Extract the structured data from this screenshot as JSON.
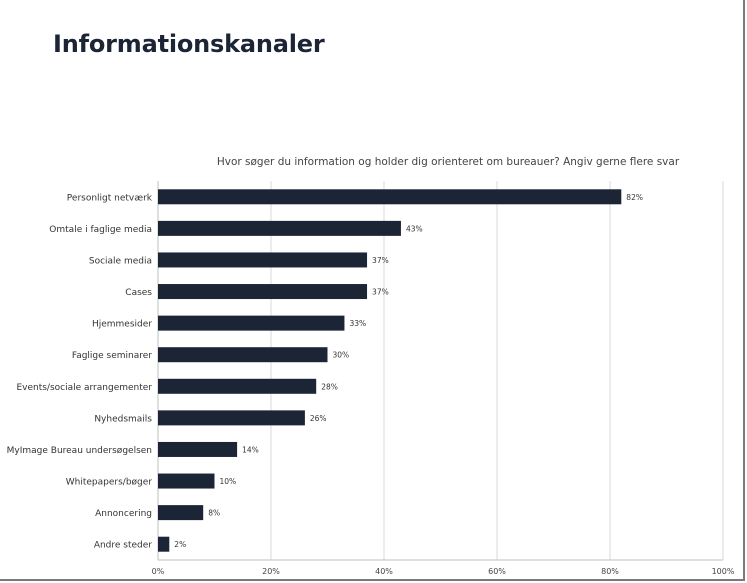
{
  "page": {
    "title": "Informationskanaler"
  },
  "chart_data": {
    "type": "bar",
    "orientation": "horizontal",
    "title": "Hvor søger du information og holder dig orienteret om bureauer? Angiv gerne flere svar",
    "categories": [
      "Personligt netværk",
      "Omtale i faglige media",
      "Sociale media",
      "Cases",
      "Hjemmesider",
      "Faglige seminarer",
      "Events/sociale arrangementer",
      "Nyhedsmails",
      "MyImage Bureau undersøgelsen",
      "Whitepapers/bøger",
      "Annoncering",
      "Andre steder"
    ],
    "values": [
      82,
      43,
      37,
      37,
      33,
      30,
      28,
      26,
      14,
      10,
      8,
      2
    ],
    "value_labels": [
      "82%",
      "43%",
      "37%",
      "37%",
      "33%",
      "30%",
      "28%",
      "26%",
      "14%",
      "10%",
      "8%",
      "2%"
    ],
    "xlim": [
      0,
      100
    ],
    "xticks": [
      "0%",
      "20%",
      "40%",
      "60%",
      "80%",
      "100%"
    ],
    "xtick_values": [
      0,
      20,
      40,
      60,
      80,
      100
    ],
    "grid": "vertical",
    "bar_color": "#1c2536"
  }
}
